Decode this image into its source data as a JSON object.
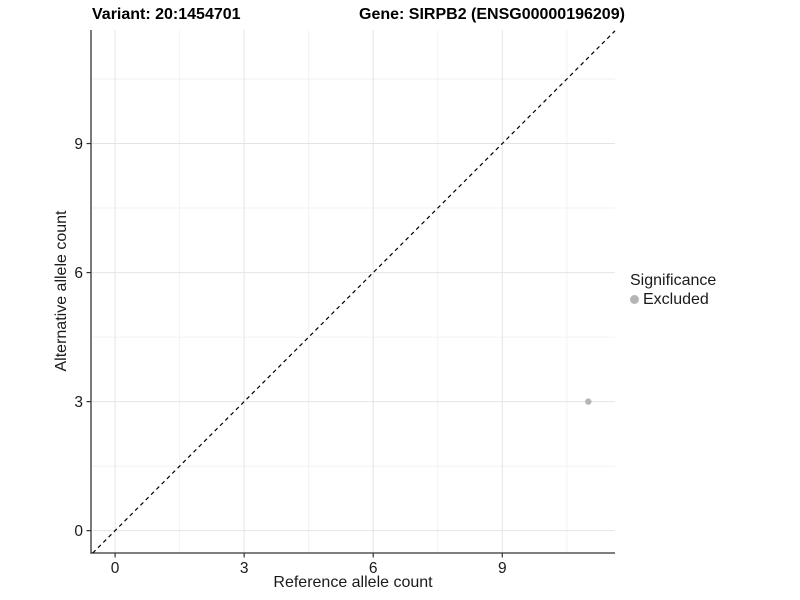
{
  "header": {
    "variant_title": "Variant: 20:1454701",
    "gene_title": "Gene: SIRPB2 (ENSG00000196209)"
  },
  "chart_data": {
    "type": "scatter",
    "title": "Variant: 20:1454701    Gene: SIRPB2 (ENSG00000196209)",
    "xlabel": "Reference allele count",
    "ylabel": "Alternative allele count",
    "xlim": [
      -0.56,
      11.62
    ],
    "ylim": [
      -0.52,
      11.64
    ],
    "x_ticks": [
      0,
      3,
      6,
      9
    ],
    "y_ticks": [
      0,
      3,
      6,
      9
    ],
    "minor_gridlines": [
      1.5,
      4.5,
      7.5,
      10.5
    ],
    "grid": true,
    "reference_line": {
      "equation": "y = x",
      "style": "dashed",
      "color": "#000000"
    },
    "series": [
      {
        "name": "Excluded",
        "color": "#b5b5b5",
        "points": [
          {
            "x": 11,
            "y": 3
          }
        ]
      }
    ],
    "legend": {
      "position": "right",
      "title": "Significance",
      "items": [
        {
          "label": "Excluded",
          "color": "#b5b5b5"
        }
      ]
    },
    "colors": {
      "background": "#ffffff",
      "axis_line": "#333333",
      "tick_mark": "#333333",
      "tick_label": "#1a1a1a",
      "grid_major": "#e4e4e4",
      "grid_minor": "#f2f2f2",
      "point": "#b5b5b5"
    }
  }
}
